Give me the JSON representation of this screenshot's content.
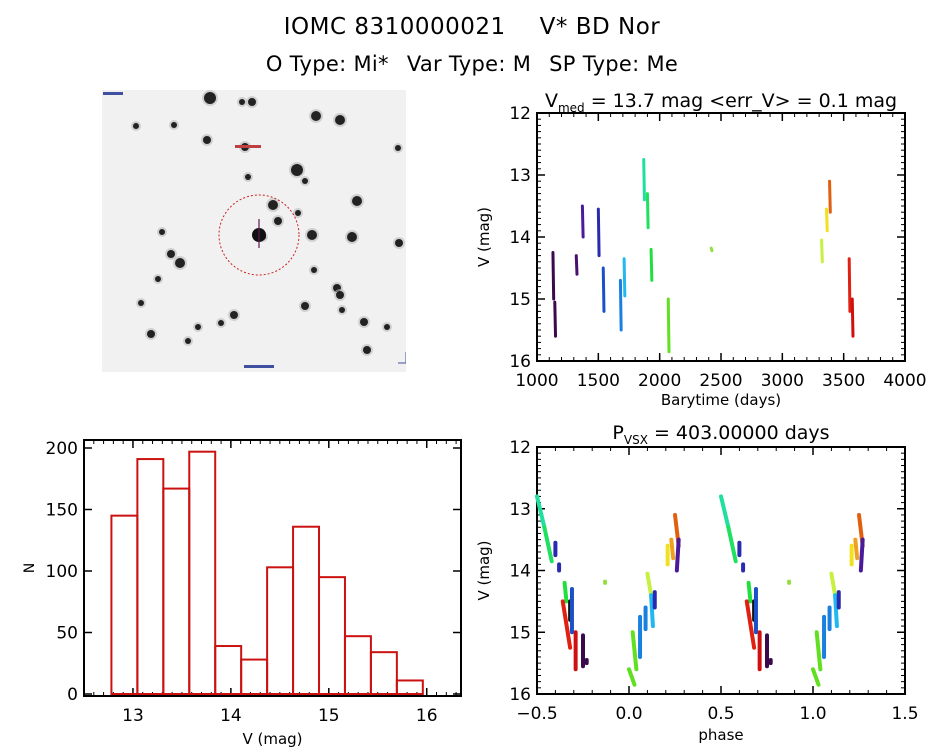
{
  "header": {
    "object_id": "IOMC 8310000021",
    "object_name": "V* BD Nor",
    "o_type": "O Type: Mi*",
    "var_type": "Var Type: M",
    "sp_type": "SP Type: Me"
  },
  "sky_image": {
    "description": "greyscale finder chart with red dashed circle around target",
    "circle_color": "#cc2222"
  },
  "chart_data": [
    {
      "id": "light-curve",
      "type": "scatter",
      "title_main": "V",
      "title_sub": "med",
      "title_rest": " = 13.7 mag <err_V> = 0.1 mag",
      "xlabel": "Barytime (days)",
      "ylabel": "V (mag)",
      "xlim": [
        1000,
        4000
      ],
      "ylim": [
        16,
        12
      ],
      "y_inverted": true,
      "xticks": [
        1000,
        1500,
        2000,
        2500,
        3000,
        3500,
        4000
      ],
      "yticks": [
        12,
        13,
        14,
        15,
        16
      ],
      "segments": [
        {
          "x": 1130,
          "y": [
            14.25,
            15.0
          ],
          "color": "#3a0a4a"
        },
        {
          "x": 1145,
          "y": [
            15.05,
            15.6
          ],
          "color": "#3a0a4a"
        },
        {
          "x": 1320,
          "y": [
            14.3,
            14.6
          ],
          "color": "#4a1070"
        },
        {
          "x": 1370,
          "y": [
            13.5,
            14.0
          ],
          "color": "#4a1a9a"
        },
        {
          "x": 1500,
          "y": [
            13.55,
            14.3
          ],
          "color": "#2a2ab0"
        },
        {
          "x": 1540,
          "y": [
            14.5,
            15.2
          ],
          "color": "#1a50c8"
        },
        {
          "x": 1680,
          "y": [
            14.7,
            15.5
          ],
          "color": "#1a80e0"
        },
        {
          "x": 1710,
          "y": [
            14.35,
            14.95
          ],
          "color": "#20b8f0"
        },
        {
          "x": 1870,
          "y": [
            12.75,
            13.4
          ],
          "color": "#20e0a0"
        },
        {
          "x": 1900,
          "y": [
            13.3,
            13.85
          ],
          "color": "#20e060"
        },
        {
          "x": 1930,
          "y": [
            14.2,
            14.7
          ],
          "color": "#20e040"
        },
        {
          "x": 2070,
          "y": [
            15.0,
            15.85
          ],
          "color": "#60e020"
        },
        {
          "x": 2420,
          "y": [
            14.18,
            14.22
          ],
          "color": "#90e040"
        },
        {
          "x": 3320,
          "y": [
            14.05,
            14.4
          ],
          "color": "#c8f040"
        },
        {
          "x": 3360,
          "y": [
            13.55,
            13.9
          ],
          "color": "#f0e020"
        },
        {
          "x": 3385,
          "y": [
            13.1,
            13.6
          ],
          "color": "#e06010"
        },
        {
          "x": 3545,
          "y": [
            14.35,
            15.2
          ],
          "color": "#e02010"
        },
        {
          "x": 3570,
          "y": [
            15.0,
            15.6
          ],
          "color": "#d01010"
        }
      ]
    },
    {
      "id": "histogram",
      "type": "bar",
      "xlabel": "V (mag)",
      "ylabel": "N",
      "xlim": [
        12.5,
        16.35
      ],
      "ylim": [
        0,
        207
      ],
      "xticks": [
        13,
        14,
        15,
        16
      ],
      "yticks": [
        0,
        50,
        100,
        150,
        200
      ],
      "bin_edges": [
        12.78,
        13.045,
        13.31,
        13.575,
        13.84,
        14.105,
        14.37,
        14.635,
        14.9,
        15.165,
        15.43,
        15.695,
        15.96
      ],
      "values": [
        145,
        191,
        167,
        197,
        39,
        28,
        103,
        136,
        95,
        47,
        34,
        11
      ],
      "color": "#cc1111"
    },
    {
      "id": "phase-curve",
      "type": "scatter",
      "title_main": "P",
      "title_sub": "VSX",
      "title_rest": " = 403.00000 days",
      "xlabel": "phase",
      "ylabel": "V (mag)",
      "xlim": [
        -0.5,
        1.5
      ],
      "ylim": [
        16,
        12
      ],
      "y_inverted": true,
      "xticks": [
        -0.5,
        0.0,
        0.5,
        1.0,
        1.5
      ],
      "xtick_labels": [
        "−0.5",
        "0.0",
        "0.5",
        "1.0",
        "1.5"
      ],
      "yticks": [
        12,
        13,
        14,
        15,
        16
      ],
      "segments": [
        {
          "x0": -0.5,
          "y0": 12.8,
          "x1": -0.46,
          "y1": 13.3,
          "color": "#20e0a0"
        },
        {
          "x0": -0.46,
          "y0": 13.3,
          "x1": -0.42,
          "y1": 13.85,
          "color": "#20e060"
        },
        {
          "x0": -0.4,
          "y0": 13.55,
          "x1": -0.4,
          "y1": 13.75,
          "color": "#2a2ab0"
        },
        {
          "x0": -0.38,
          "y0": 13.9,
          "x1": -0.38,
          "y1": 14.0,
          "color": "#2a2ab0"
        },
        {
          "x0": -0.35,
          "y0": 14.2,
          "x1": -0.34,
          "y1": 14.5,
          "color": "#20e040"
        },
        {
          "x0": -0.36,
          "y0": 14.5,
          "x1": -0.32,
          "y1": 15.25,
          "color": "#e02010"
        },
        {
          "x0": -0.32,
          "y0": 14.5,
          "x1": -0.32,
          "y1": 14.8,
          "color": "#101010"
        },
        {
          "x0": -0.31,
          "y0": 14.3,
          "x1": -0.31,
          "y1": 15.0,
          "color": "#1a50c8"
        },
        {
          "x0": -0.29,
          "y0": 15.0,
          "x1": -0.29,
          "y1": 15.6,
          "color": "#d01010"
        },
        {
          "x0": -0.25,
          "y0": 15.05,
          "x1": -0.25,
          "y1": 15.55,
          "color": "#3a0a4a"
        },
        {
          "x0": -0.23,
          "y0": 15.45,
          "x1": -0.23,
          "y1": 15.5,
          "color": "#3a0a4a"
        },
        {
          "x0": -0.13,
          "y0": 14.18,
          "x1": -0.13,
          "y1": 14.2,
          "color": "#90e040"
        },
        {
          "x0": 0.0,
          "y0": 15.6,
          "x1": 0.03,
          "y1": 15.85,
          "color": "#60e020"
        },
        {
          "x0": 0.02,
          "y0": 15.0,
          "x1": 0.04,
          "y1": 15.6,
          "color": "#60e020"
        },
        {
          "x0": 0.06,
          "y0": 14.75,
          "x1": 0.06,
          "y1": 15.4,
          "color": "#1a80e0"
        },
        {
          "x0": 0.09,
          "y0": 14.6,
          "x1": 0.09,
          "y1": 14.95,
          "color": "#1a80e0"
        },
        {
          "x0": 0.1,
          "y0": 14.05,
          "x1": 0.12,
          "y1": 14.4,
          "color": "#c8f040"
        },
        {
          "x0": 0.12,
          "y0": 14.4,
          "x1": 0.13,
          "y1": 14.9,
          "color": "#20b8f0"
        },
        {
          "x0": 0.14,
          "y0": 14.35,
          "x1": 0.14,
          "y1": 14.6,
          "color": "#2a2ab0"
        },
        {
          "x0": 0.21,
          "y0": 13.6,
          "x1": 0.21,
          "y1": 13.9,
          "color": "#f0e020"
        },
        {
          "x0": 0.23,
          "y0": 13.5,
          "x1": 0.24,
          "y1": 13.8,
          "color": "#f0a020"
        },
        {
          "x0": 0.25,
          "y0": 13.1,
          "x1": 0.27,
          "y1": 13.6,
          "color": "#e06010"
        },
        {
          "x0": 0.27,
          "y0": 13.5,
          "x1": 0.26,
          "y1": 14.0,
          "color": "#4a1a9a"
        }
      ],
      "repeat_offset": 1.0
    }
  ]
}
